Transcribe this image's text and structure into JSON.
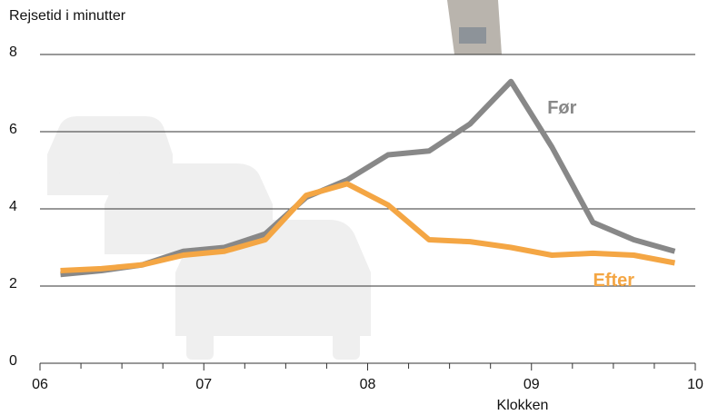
{
  "chart_data": {
    "type": "line",
    "y_label": "Rejsetid i minutter",
    "x_label": "Klokken",
    "x": [
      6.125,
      6.375,
      6.625,
      6.875,
      7.125,
      7.375,
      7.625,
      7.875,
      8.125,
      8.375,
      8.625,
      8.875,
      9.125,
      9.375,
      9.625,
      9.875
    ],
    "series": [
      {
        "name": "Før",
        "color": "#888888",
        "values": [
          2.3,
          2.4,
          2.55,
          2.9,
          3.0,
          3.35,
          4.3,
          4.75,
          5.4,
          5.5,
          6.2,
          7.3,
          5.6,
          3.65,
          3.2,
          2.9
        ]
      },
      {
        "name": "Efter",
        "color": "#f4a644",
        "values": [
          2.4,
          2.45,
          2.55,
          2.8,
          2.9,
          3.2,
          4.35,
          4.65,
          4.1,
          3.2,
          3.15,
          3.0,
          2.8,
          2.85,
          2.8,
          2.6
        ]
      }
    ],
    "xlim": [
      6,
      10
    ],
    "xticks": [
      {
        "value": 6,
        "label": "06"
      },
      {
        "value": 7,
        "label": "07"
      },
      {
        "value": 8,
        "label": "08"
      },
      {
        "value": 9,
        "label": "09"
      },
      {
        "value": 10,
        "label": "10"
      }
    ],
    "xminorticks": [
      6.25,
      6.5,
      6.75,
      7.25,
      7.5,
      7.75,
      8.25,
      8.5,
      8.75,
      9.25,
      9.5,
      9.75
    ],
    "ylim": [
      0,
      8
    ],
    "yticks": [
      0,
      2,
      4,
      6,
      8
    ],
    "grid": true
  }
}
